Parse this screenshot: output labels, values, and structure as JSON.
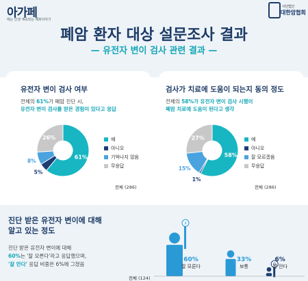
{
  "brand": {
    "logo": "아가페",
    "logo_sub": "에는 인생 계속되는 해피이야기",
    "assoc_small": "사단법인",
    "assoc_name": "대한암협회"
  },
  "title": "폐암 환자 대상 설문조사 결과",
  "subtitle": "— 유전자 변이 검사 관련 결과 —",
  "panels": [
    {
      "title": "유전자 변이 검사 여부",
      "desc_pre": "전체의 ",
      "desc_pct": "61%",
      "desc_mid": "가 폐암 진단 시,",
      "desc_line2": "유전자 변이 검사를 받은 경험이 있다고 응답",
      "total": "전체 (286)"
    },
    {
      "title": "검사가 치료에 도움이 되는지 동의 정도",
      "desc_pre": "전체의 ",
      "desc_pct": "58%",
      "desc_mid": "가 유전자 변이 검사 시행이",
      "desc_line2": "폐암 치료에 도움이 된다고 생각",
      "total": "전체 (286)"
    }
  ],
  "bottom": {
    "title1": "진단 받은 유전자 변이에 대해",
    "title2": "알고 있는 정도",
    "desc1": "진단 받은 유전자 변이에 대해",
    "desc2_pct": "60%",
    "desc2_rest": "는 '잘 모른다'라고 응답했으며,",
    "desc3_q": "'잘 안다'",
    "desc3_rest": " 응답 비중은 6%에 그쳤음",
    "total": "전체 (124)"
  },
  "chart_data": [
    {
      "type": "pie",
      "title": "유전자 변이 검사 여부",
      "categories": [
        "예",
        "아니오",
        "기억나지 않음",
        "무응답"
      ],
      "values": [
        61,
        5,
        8,
        26
      ],
      "labels": [
        "61%",
        "5%",
        "8%",
        "26%"
      ],
      "colors": [
        "#17b6c2",
        "#1d3d72",
        "#4aa3df",
        "#c8c8c8"
      ],
      "legend_position": "right"
    },
    {
      "type": "pie",
      "title": "검사가 치료에 도움이 되는지 동의 정도",
      "categories": [
        "예",
        "아니오",
        "잘 모르겠음",
        "무응답"
      ],
      "values": [
        58,
        1,
        15,
        27
      ],
      "labels": [
        "58%",
        "1%",
        "15%",
        "27%"
      ],
      "colors": [
        "#17b6c2",
        "#1d3d72",
        "#4aa3df",
        "#c8c8c8"
      ],
      "legend_position": "right"
    },
    {
      "type": "bar",
      "title": "진단 받은 유전자 변이에 대해 알고 있는 정도",
      "categories": [
        "잘 모른다",
        "보통",
        "잘 안다"
      ],
      "values": [
        60,
        33,
        6
      ],
      "labels": [
        "60%",
        "33%",
        "6%"
      ],
      "colors": [
        "#2a9ad6",
        "#2a9ad6",
        "#1d3d72"
      ],
      "person_marks": [
        "X",
        "",
        "O"
      ]
    }
  ]
}
